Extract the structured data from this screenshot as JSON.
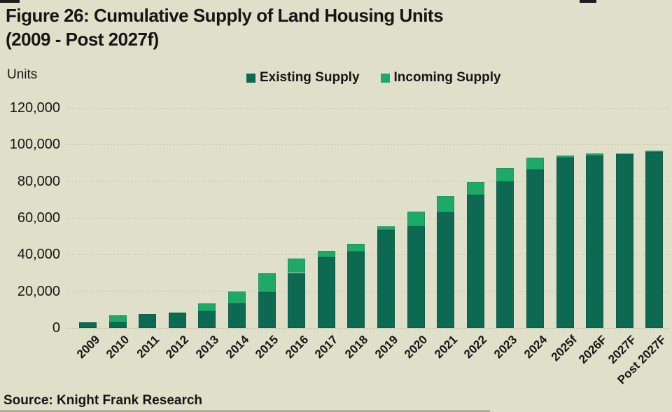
{
  "page": {
    "title_line1": "Figure 26: Cumulative Supply of Land Housing Units",
    "title_line2": "(2009 - Post 2027f)",
    "units_label": "Units",
    "source": "Source: Knight Frank Research"
  },
  "legend": {
    "items": [
      {
        "label": "Existing Supply",
        "color": "#0d6952"
      },
      {
        "label": "Incoming Supply",
        "color": "#1ca96a"
      }
    ]
  },
  "colors": {
    "background": "#e0dfc9",
    "text": "#161616",
    "existing_supply": "#0d6952",
    "incoming_supply": "#1ca96a",
    "gridline": "#c7c6ab"
  },
  "chart_data": {
    "type": "bar",
    "stacked": true,
    "title": "Figure 26: Cumulative Supply of Land Housing Units (2009 - Post 2027f)",
    "xlabel": "",
    "ylabel": "Units",
    "ylim": [
      0,
      120000
    ],
    "ytick_step": 20000,
    "ytick_labels": [
      "0",
      "20,000",
      "40,000",
      "60,000",
      "80,000",
      "100,000",
      "120,000"
    ],
    "grid": "horizontal-dotted",
    "legend_position": "top-center",
    "categories": [
      "2009",
      "2010",
      "2011",
      "2012",
      "2013",
      "2014",
      "2015",
      "2016",
      "2017",
      "2018",
      "2019",
      "2020",
      "2021",
      "2022",
      "2023",
      "2024",
      "2025f",
      "2026F",
      "2027F",
      "Post 2027F"
    ],
    "series": [
      {
        "name": "Existing Supply",
        "color": "#0d6952",
        "values": [
          3000,
          3000,
          7500,
          8000,
          9000,
          13500,
          19500,
          30000,
          38500,
          41500,
          53500,
          55500,
          63000,
          72500,
          80000,
          86500,
          93000,
          94000,
          95000,
          96000
        ]
      },
      {
        "name": "Incoming Supply",
        "color": "#1ca96a",
        "values": [
          0,
          4000,
          0,
          500,
          4500,
          6500,
          10500,
          8000,
          3500,
          4500,
          2000,
          8000,
          9000,
          7000,
          7000,
          6500,
          1000,
          1000,
          300,
          500
        ]
      }
    ]
  }
}
